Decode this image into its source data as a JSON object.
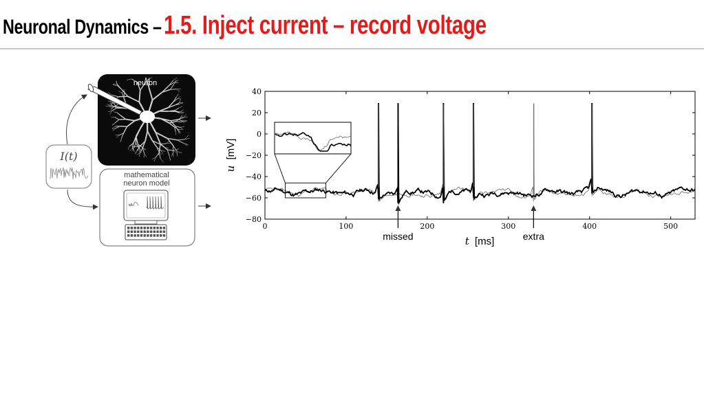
{
  "header": {
    "title_prefix": "Neuronal Dynamics –",
    "title_section": "1.5. Inject current – record voltage"
  },
  "left_panel": {
    "neuron_label": "neuron",
    "input_label": "I(t)",
    "model_label_line1": "mathematical",
    "model_label_line2": "neuron model"
  },
  "chart_data": {
    "type": "line",
    "xlabel_var": "t",
    "xlabel_unit": "[ms]",
    "ylabel_var": "u",
    "ylabel_unit": "[mV]",
    "xlim": [
      0,
      530
    ],
    "ylim": [
      -80,
      40
    ],
    "x_ticks": [
      "0",
      "100",
      "200",
      "300",
      "400",
      "500"
    ],
    "y_ticks": [
      "40",
      "20",
      "0",
      "−20",
      "−40",
      "−60",
      "−80"
    ],
    "spikes_experiment": [
      140,
      164,
      220,
      257,
      403
    ],
    "spikes_model": [
      140,
      220,
      257,
      331,
      403
    ],
    "annotations": [
      {
        "label": "missed",
        "x": 164
      },
      {
        "label": "extra",
        "x": 331
      }
    ],
    "inset_window": [
      25,
      75
    ]
  }
}
